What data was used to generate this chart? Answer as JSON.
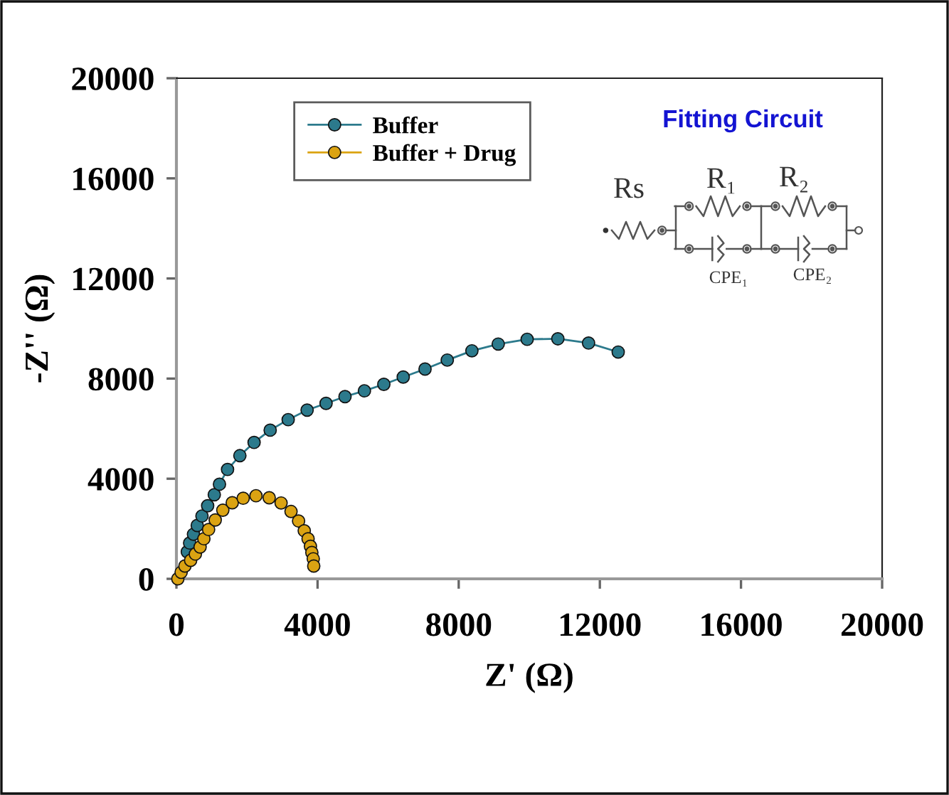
{
  "chart_data": {
    "type": "line",
    "xlabel": "Z' (Ω)",
    "ylabel": "-Z'' (Ω)",
    "xlim": [
      0,
      20000
    ],
    "ylim": [
      0,
      20000
    ],
    "xticks": [
      0,
      4000,
      8000,
      12000,
      16000,
      20000
    ],
    "yticks": [
      0,
      4000,
      8000,
      12000,
      16000,
      20000
    ],
    "marker": "circle",
    "line_style": "solid",
    "legend": "top left",
    "annotations": [
      "Fitting Circuit",
      "Rs",
      "R₁",
      "R₂",
      "CPE₁",
      "CPE₂"
    ],
    "series": [
      {
        "name": "Buffer",
        "color": "#2c7a8c",
        "x": [
          309,
          375,
          483,
          590,
          724,
          885,
          1073,
          1220,
          1449,
          1798,
          2201,
          2657,
          3167,
          3704,
          4241,
          4778,
          5328,
          5878,
          6428,
          7046,
          7676,
          8374,
          9120,
          9940,
          10810,
          11680,
          12520
        ],
        "values": [
          1080,
          1430,
          1780,
          2130,
          2510,
          2920,
          3360,
          3780,
          4370,
          4920,
          5450,
          5940,
          6360,
          6740,
          7010,
          7280,
          7510,
          7770,
          8060,
          8380,
          8740,
          9110,
          9380,
          9570,
          9590,
          9420,
          9060
        ]
      },
      {
        "name": "Buffer + Drug",
        "type": "scatter",
        "color": "#dba312",
        "x": [
          40,
          134,
          241,
          403,
          537,
          671,
          778,
          912,
          1100,
          1315,
          1582,
          1892,
          2255,
          2630,
          2966,
          3248,
          3462,
          3623,
          3731,
          3798,
          3838,
          3878,
          3892
        ],
        "values": [
          0,
          260,
          510,
          740,
          990,
          1270,
          1600,
          1970,
          2350,
          2740,
          3040,
          3220,
          3320,
          3240,
          3030,
          2690,
          2310,
          1920,
          1600,
          1300,
          1050,
          800,
          510
        ]
      }
    ]
  }
}
